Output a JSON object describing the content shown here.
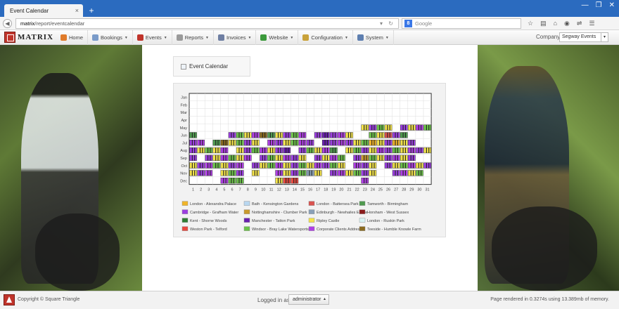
{
  "browser": {
    "tab_title": "Event Calendar",
    "tab_close": "×",
    "new_tab": "+",
    "url_host": "matrix",
    "url_path": "/report/eventcalendar",
    "url_tools": "▾ ↻",
    "back": "◀",
    "search_engine": "8",
    "search_placeholder": "Google",
    "window_buttons": [
      "—",
      "❐",
      "✕"
    ],
    "toolbar_icons": [
      "☆",
      "▤",
      "⌂",
      "◉",
      "⇌",
      "☰"
    ]
  },
  "app": {
    "logo_text": "MATRIX",
    "menu": [
      {
        "label": "Home",
        "color": "#e07b2a",
        "dropdown": false
      },
      {
        "label": "Bookings",
        "color": "#7a9bc9",
        "dropdown": true
      },
      {
        "label": "Events",
        "color": "#c0342b",
        "dropdown": true
      },
      {
        "label": "Reports",
        "color": "#9a9a9a",
        "dropdown": true
      },
      {
        "label": "Invoices",
        "color": "#6f7fa3",
        "dropdown": true
      },
      {
        "label": "Website",
        "color": "#3c9a3c",
        "dropdown": true
      },
      {
        "label": "Configuration",
        "color": "#c9a23a",
        "dropdown": true
      },
      {
        "label": "System",
        "color": "#5e7fb0",
        "dropdown": true
      }
    ],
    "company_label": "Company:",
    "company_value": "Segway Events",
    "company_caret": "▾"
  },
  "page": {
    "title": "Event Calendar"
  },
  "chart_data": {
    "type": "heatmap",
    "months": [
      "Jan",
      "Feb",
      "Mar",
      "Apr",
      "May",
      "Jun",
      "Jul",
      "Aug",
      "Sep",
      "Oct",
      "Nov",
      "Dec"
    ],
    "days": [
      "1",
      "2",
      "3",
      "4",
      "5",
      "6",
      "7",
      "8",
      "9",
      "10",
      "11",
      "12",
      "13",
      "14",
      "15",
      "16",
      "17",
      "18",
      "19",
      "20",
      "21",
      "22",
      "23",
      "24",
      "25",
      "26",
      "27",
      "28",
      "29",
      "30",
      "31"
    ],
    "legend": [
      {
        "name": "London - Alexandra Palace",
        "color": "#f0b429"
      },
      {
        "name": "Bath - Kensington Gardens",
        "color": "#b8d7f0"
      },
      {
        "name": "London - Battersea Park",
        "color": "#d9534f"
      },
      {
        "name": "Tamworth - Birmingham",
        "color": "#4f9a4f"
      },
      {
        "name": "Cambridge - Grafham Water",
        "color": "#9b3fe0"
      },
      {
        "name": "Nottinghamshire - Clumber Park",
        "color": "#c99a2e"
      },
      {
        "name": "Edinburgh - Newhailes Estate",
        "color": "#8aa0b8"
      },
      {
        "name": "Horsham - West Sussex",
        "color": "#8b1c1c"
      },
      {
        "name": "Kent - Shorne Woods",
        "color": "#2e7d32"
      },
      {
        "name": "Manchester - Tatton Park",
        "color": "#6a1fb0"
      },
      {
        "name": "Ripley Castle",
        "color": "#f3e34a"
      },
      {
        "name": "London - Ruskin Park",
        "color": "#d8f3f3"
      },
      {
        "name": "Weston Park - Telford",
        "color": "#e8493f"
      },
      {
        "name": "Windsor - Bray Lake Watersports",
        "color": "#6cc24a"
      },
      {
        "name": "Corporate Clients Address",
        "color": "#b03fe6"
      },
      {
        "name": "Teeside - Humble Knowle Farm",
        "color": "#8a6a1f"
      }
    ],
    "events": [
      {
        "month": "May",
        "days": [
          23,
          24,
          25,
          26,
          28,
          29,
          30,
          31
        ],
        "colors": [
          10,
          4,
          13,
          10,
          4,
          10,
          14,
          13
        ]
      },
      {
        "month": "Jun",
        "days": [
          1,
          6,
          7,
          8,
          9,
          10,
          11,
          12,
          13,
          14,
          15,
          17,
          18,
          19,
          20,
          21,
          24,
          25,
          26,
          27,
          28
        ],
        "colors": [
          3,
          4,
          13,
          10,
          14,
          15,
          3,
          10,
          4,
          13,
          14,
          4,
          9,
          4,
          14,
          10,
          13,
          10,
          2,
          4,
          3
        ]
      },
      {
        "month": "Jul",
        "days": [
          1,
          2,
          4,
          5,
          6,
          7,
          8,
          9,
          11,
          12,
          13,
          14,
          15,
          16,
          18,
          19,
          20,
          21,
          22,
          23,
          24,
          25,
          26,
          27,
          28,
          29
        ],
        "colors": [
          4,
          14,
          3,
          15,
          10,
          13,
          4,
          10,
          14,
          4,
          10,
          13,
          14,
          4,
          9,
          4,
          14,
          4,
          10,
          13,
          0,
          10,
          4,
          0,
          10,
          4
        ]
      },
      {
        "month": "Aug",
        "days": [
          1,
          2,
          3,
          4,
          5,
          7,
          8,
          9,
          10,
          11,
          12,
          13,
          15,
          16,
          17,
          18,
          19,
          21,
          22,
          23,
          24,
          25,
          26,
          27,
          28,
          29,
          30,
          31
        ],
        "colors": [
          4,
          10,
          13,
          10,
          14,
          10,
          4,
          13,
          14,
          10,
          4,
          9,
          4,
          13,
          10,
          14,
          3,
          10,
          13,
          4,
          10,
          14,
          4,
          13,
          10,
          14,
          4,
          10
        ]
      },
      {
        "month": "Sep",
        "days": [
          1,
          3,
          4,
          5,
          6,
          7,
          8,
          10,
          11,
          12,
          13,
          14,
          15,
          17,
          18,
          19,
          20,
          22,
          23,
          24,
          25,
          26,
          27,
          28,
          29
        ],
        "colors": [
          4,
          4,
          10,
          14,
          13,
          10,
          14,
          4,
          13,
          10,
          14,
          4,
          10,
          4,
          10,
          14,
          13,
          4,
          5,
          13,
          10,
          4,
          14,
          10,
          4
        ]
      },
      {
        "month": "Oct",
        "days": [
          1,
          2,
          3,
          4,
          5,
          6,
          7,
          9,
          10,
          11,
          12,
          13,
          14,
          15,
          16,
          17,
          18,
          19,
          20,
          22,
          23,
          24,
          26,
          27,
          28,
          29,
          30,
          31
        ],
        "colors": [
          10,
          4,
          14,
          13,
          10,
          4,
          14,
          4,
          10,
          13,
          14,
          10,
          4,
          13,
          10,
          14,
          4,
          13,
          10,
          14,
          4,
          10,
          4,
          10,
          13,
          14,
          10,
          4
        ]
      },
      {
        "month": "Nov",
        "days": [
          1,
          2,
          3,
          5,
          6,
          7,
          9,
          12,
          13,
          14,
          15,
          16,
          17,
          19,
          20,
          21,
          22,
          23,
          24,
          27,
          28,
          29,
          30
        ],
        "colors": [
          10,
          4,
          14,
          10,
          13,
          4,
          10,
          14,
          10,
          4,
          13,
          6,
          10,
          4,
          14,
          10,
          13,
          4,
          10,
          4,
          14,
          10,
          13
        ]
      },
      {
        "month": "Dec",
        "days": [
          5,
          6,
          7,
          12,
          13,
          14,
          23
        ],
        "colors": [
          14,
          13,
          13,
          10,
          12,
          12,
          14
        ]
      }
    ]
  },
  "footer": {
    "copyright": "Copyright © Square Triangle",
    "logged_in_label": "Logged in as:",
    "user": "administrator",
    "user_caret": "▴",
    "rendered": "Page rendered in 0.3274s using 13.389mb of memory."
  }
}
